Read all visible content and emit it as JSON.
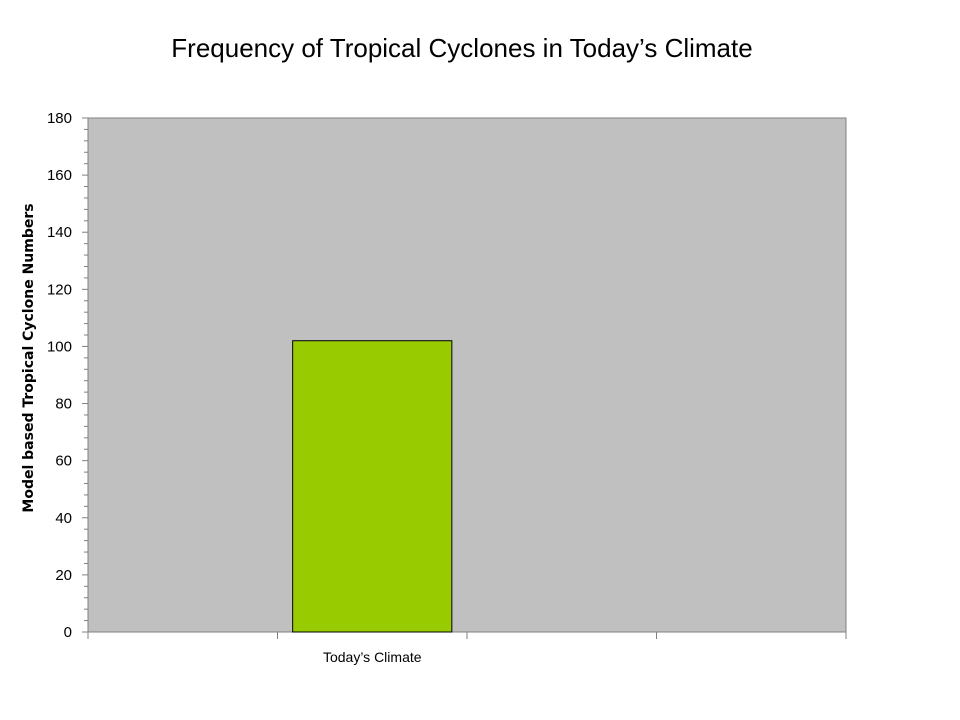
{
  "chart_data": {
    "type": "bar",
    "title": "Frequency of Tropical Cyclones in Today’s Climate",
    "ylabel": "Model based Tropical Cyclone Numbers",
    "xlabel": "",
    "categories": [
      "",
      "Today’s Climate",
      "",
      ""
    ],
    "values": [
      0,
      102,
      0,
      0
    ],
    "ylim": [
      0,
      180
    ],
    "yticks": [
      0,
      20,
      40,
      60,
      80,
      100,
      120,
      140,
      160,
      180
    ],
    "grid": false,
    "legend": "none",
    "colors": {
      "plot_background": "#c0c0c0",
      "bar_fill": "#99cc00",
      "bar_stroke": "#000000",
      "axis": "#808080"
    }
  }
}
